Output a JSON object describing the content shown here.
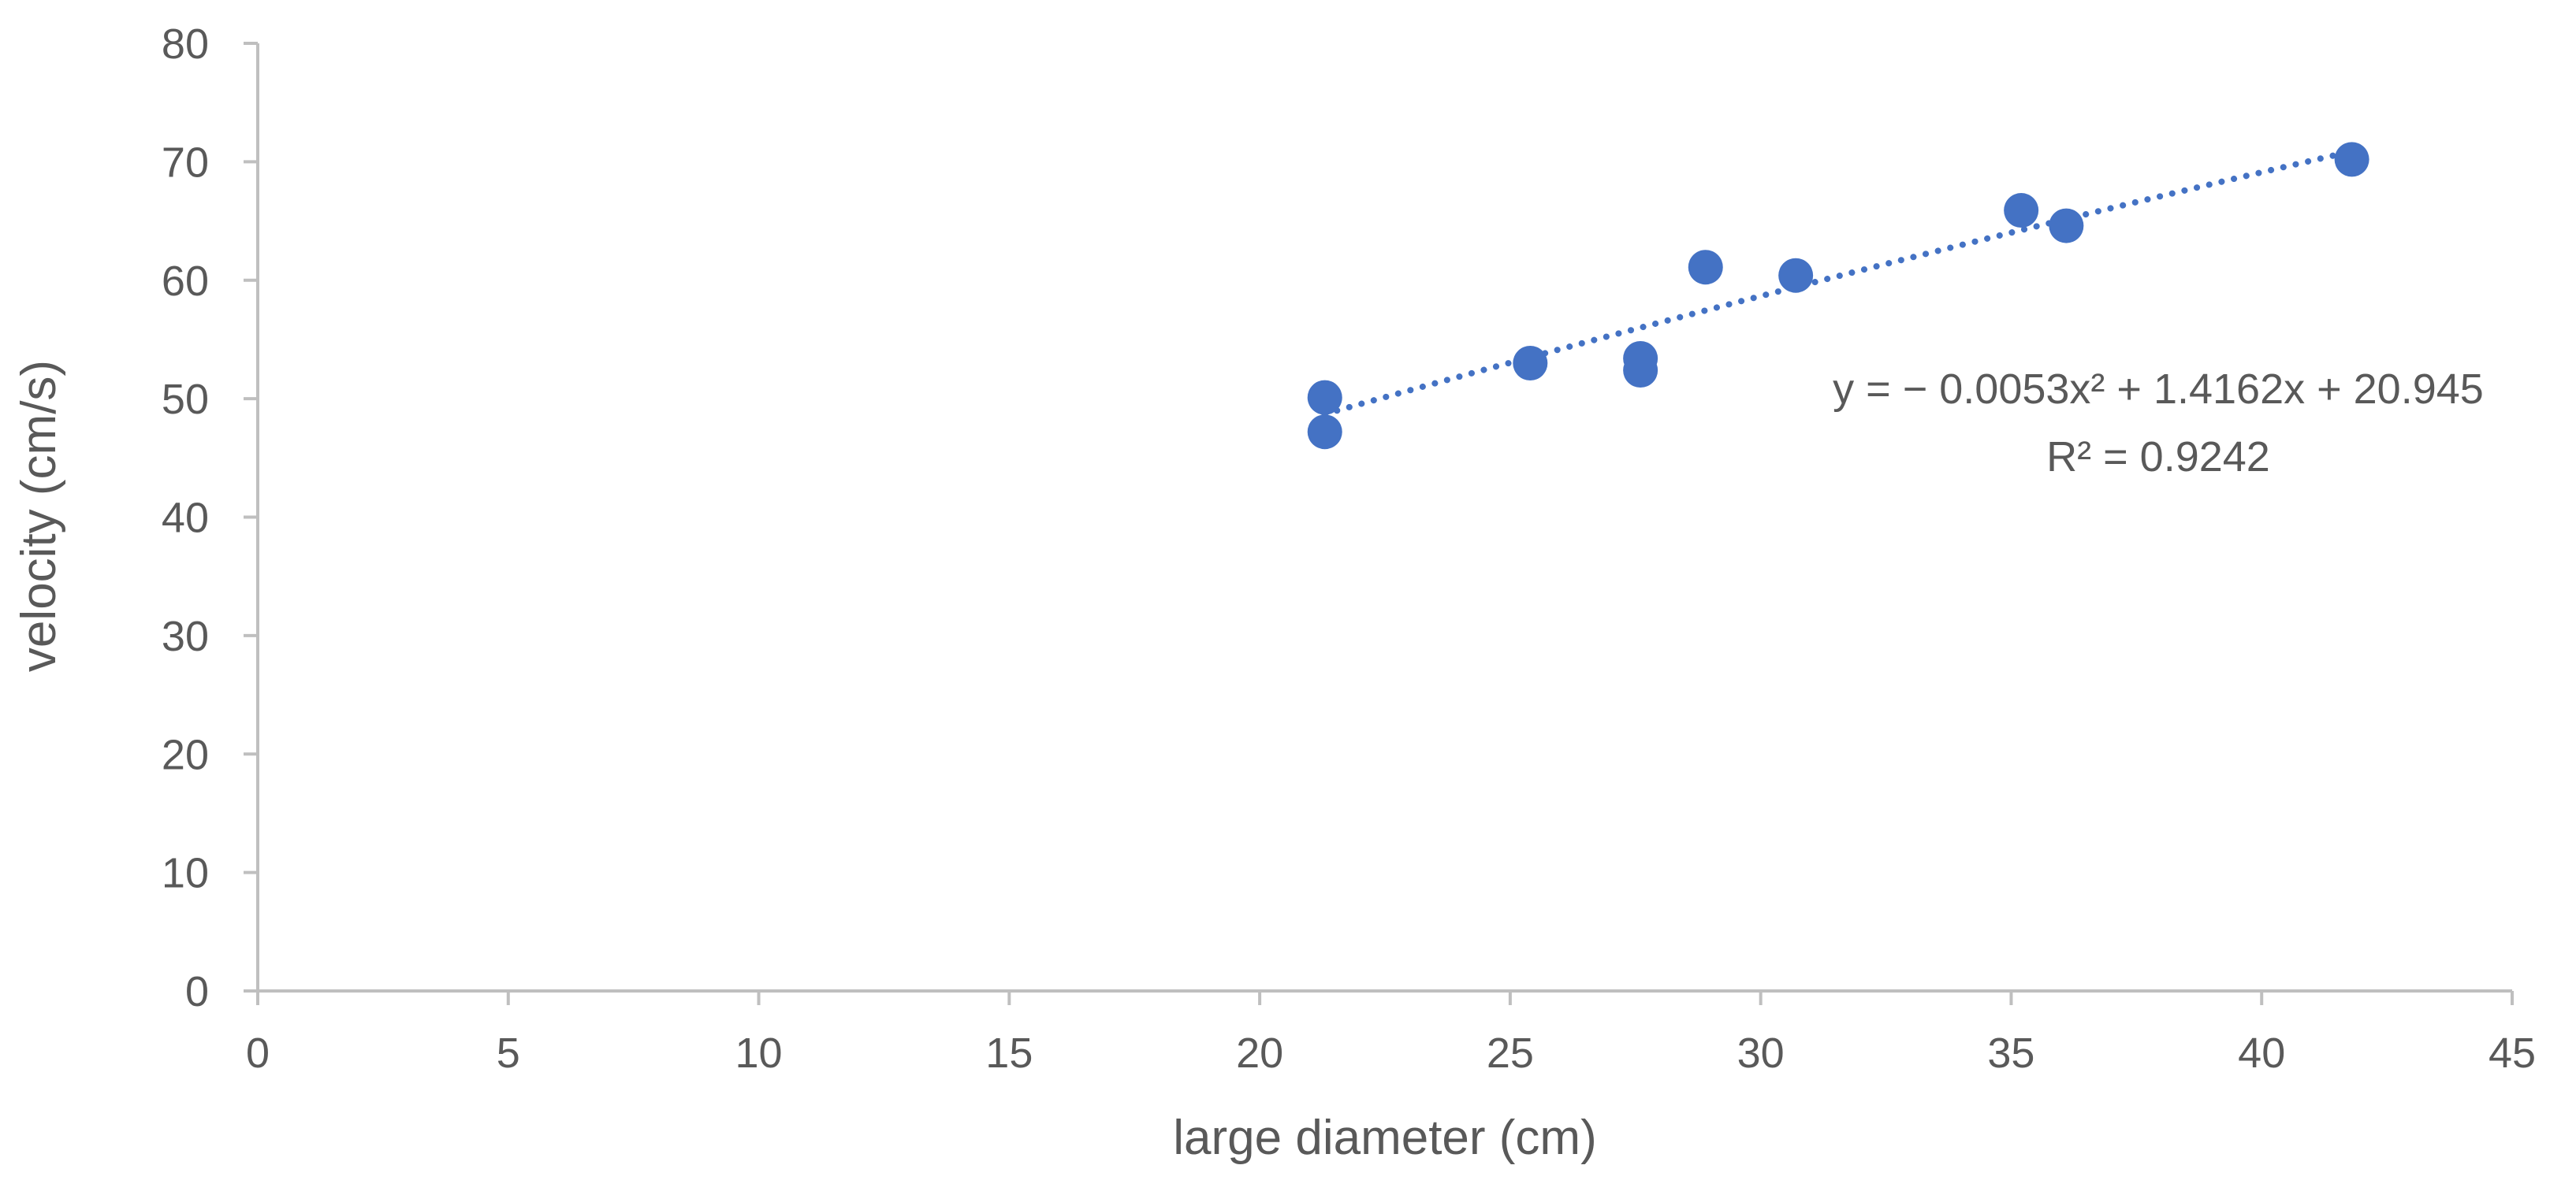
{
  "chart_data": {
    "type": "scatter",
    "title": "",
    "xlabel": "large diameter (cm)",
    "ylabel": "velocity (cm/s)",
    "xlim": [
      0,
      45
    ],
    "ylim": [
      0,
      80
    ],
    "x_ticks": [
      0,
      5,
      10,
      15,
      20,
      25,
      30,
      35,
      40,
      45
    ],
    "y_ticks": [
      0,
      10,
      20,
      30,
      40,
      50,
      60,
      70,
      80
    ],
    "grid": false,
    "legend": "none",
    "series": [
      {
        "points": [
          {
            "x": 21.3,
            "y": 50.1
          },
          {
            "x": 21.3,
            "y": 47.2
          },
          {
            "x": 25.4,
            "y": 53.0
          },
          {
            "x": 27.6,
            "y": 53.4
          },
          {
            "x": 27.6,
            "y": 52.4
          },
          {
            "x": 28.9,
            "y": 61.1
          },
          {
            "x": 30.7,
            "y": 60.4
          },
          {
            "x": 35.2,
            "y": 65.9
          },
          {
            "x": 36.1,
            "y": 64.6
          },
          {
            "x": 41.8,
            "y": 70.2
          }
        ],
        "color": "#4472C4"
      }
    ],
    "trendline": {
      "type": "polynomial",
      "order": 2,
      "coefficients": {
        "a": -0.0053,
        "b": 1.4162,
        "c": 20.945
      },
      "x_range": [
        21.3,
        41.8
      ],
      "style": "dotted",
      "color": "#4472C4",
      "equation_text": "y = − 0.0053x² + 1.4162x + 20.945",
      "r2_text": "R² = 0.9242"
    },
    "axis_color": "#BFBFBF",
    "text_color": "#595959"
  }
}
